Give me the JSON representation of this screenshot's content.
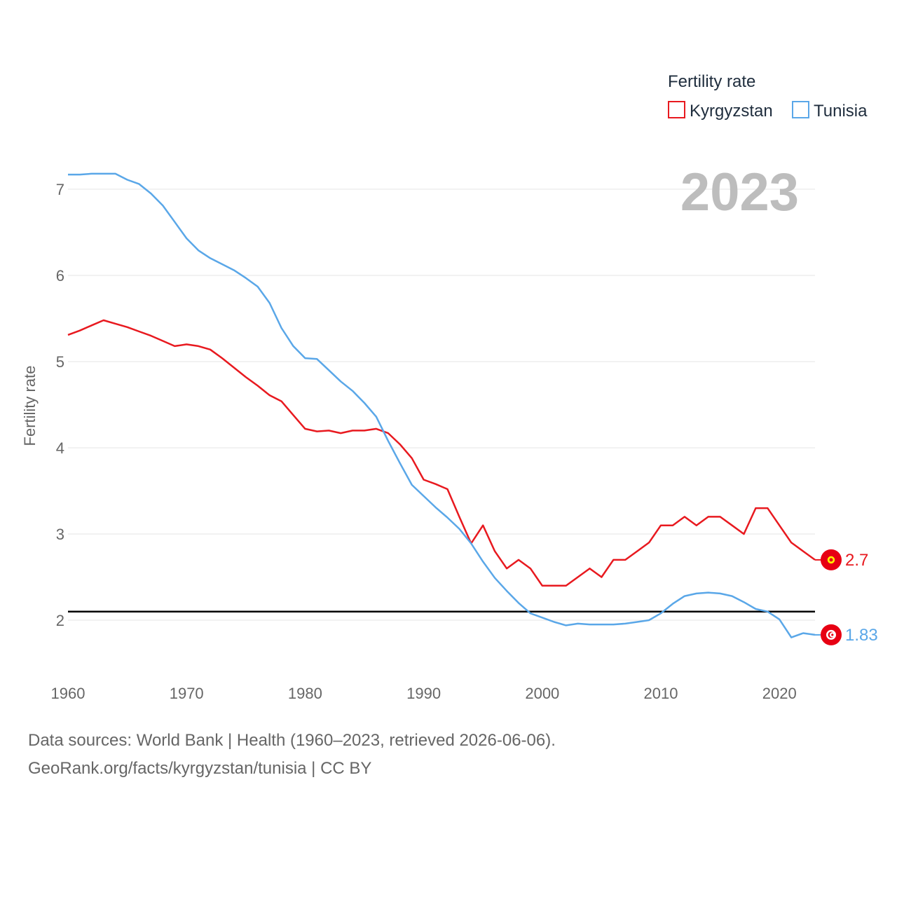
{
  "chart_data": {
    "type": "line",
    "ylabel": "Fertility rate",
    "legend_title": "Fertility rate",
    "legend_position": "top-right",
    "year_label": "2023",
    "x": [
      1960,
      1961,
      1962,
      1963,
      1964,
      1965,
      1966,
      1967,
      1968,
      1969,
      1970,
      1971,
      1972,
      1973,
      1974,
      1975,
      1976,
      1977,
      1978,
      1979,
      1980,
      1981,
      1982,
      1983,
      1984,
      1985,
      1986,
      1987,
      1988,
      1989,
      1990,
      1991,
      1992,
      1993,
      1994,
      1995,
      1996,
      1997,
      1998,
      1999,
      2000,
      2001,
      2002,
      2003,
      2004,
      2005,
      2006,
      2007,
      2008,
      2009,
      2010,
      2011,
      2012,
      2013,
      2014,
      2015,
      2016,
      2017,
      2018,
      2019,
      2020,
      2021,
      2022,
      2023
    ],
    "series": [
      {
        "name": "Kyrgyzstan",
        "color": "#e8191f",
        "end_label": "2.7",
        "values": [
          5.31,
          5.36,
          5.42,
          5.48,
          5.44,
          5.4,
          5.35,
          5.3,
          5.24,
          5.18,
          5.2,
          5.18,
          5.14,
          5.04,
          4.93,
          4.82,
          4.72,
          4.61,
          4.54,
          4.38,
          4.22,
          4.19,
          4.2,
          4.17,
          4.2,
          4.2,
          4.22,
          4.17,
          4.04,
          3.88,
          3.63,
          3.58,
          3.52,
          3.2,
          2.89,
          3.1,
          2.8,
          2.6,
          2.7,
          2.6,
          2.4,
          2.4,
          2.4,
          2.5,
          2.6,
          2.5,
          2.7,
          2.7,
          2.8,
          2.9,
          3.1,
          3.1,
          3.2,
          3.1,
          3.2,
          3.2,
          3.1,
          3.0,
          3.3,
          3.3,
          3.1,
          2.9,
          2.8,
          2.7
        ]
      },
      {
        "name": "Tunisia",
        "color": "#5aa7e8",
        "end_label": "1.83",
        "values": [
          7.17,
          7.17,
          7.18,
          7.18,
          7.18,
          7.11,
          7.06,
          6.95,
          6.81,
          6.62,
          6.43,
          6.29,
          6.2,
          6.13,
          6.06,
          5.97,
          5.87,
          5.68,
          5.39,
          5.18,
          5.04,
          5.03,
          4.9,
          4.77,
          4.66,
          4.52,
          4.36,
          4.08,
          3.82,
          3.57,
          3.44,
          3.31,
          3.19,
          3.06,
          2.89,
          2.68,
          2.49,
          2.34,
          2.2,
          2.08,
          2.03,
          1.98,
          1.94,
          1.96,
          1.95,
          1.95,
          1.95,
          1.96,
          1.98,
          2.0,
          2.08,
          2.19,
          2.28,
          2.31,
          2.32,
          2.31,
          2.28,
          2.21,
          2.13,
          2.1,
          2.01,
          1.8,
          1.85,
          1.83
        ]
      }
    ],
    "reference_line": 2.1,
    "xticks": [
      1960,
      1970,
      1980,
      1990,
      2000,
      2010,
      2020
    ],
    "yticks": [
      2,
      3,
      4,
      5,
      6,
      7
    ],
    "xlim": [
      1960,
      2023
    ],
    "ylim": [
      1.4,
      7.6
    ]
  },
  "footer": {
    "line1": "Data sources: World Bank | Health (1960–2023, retrieved 2026-06-06).",
    "line2": "GeoRank.org/facts/kyrgyzstan/tunisia | CC BY"
  }
}
